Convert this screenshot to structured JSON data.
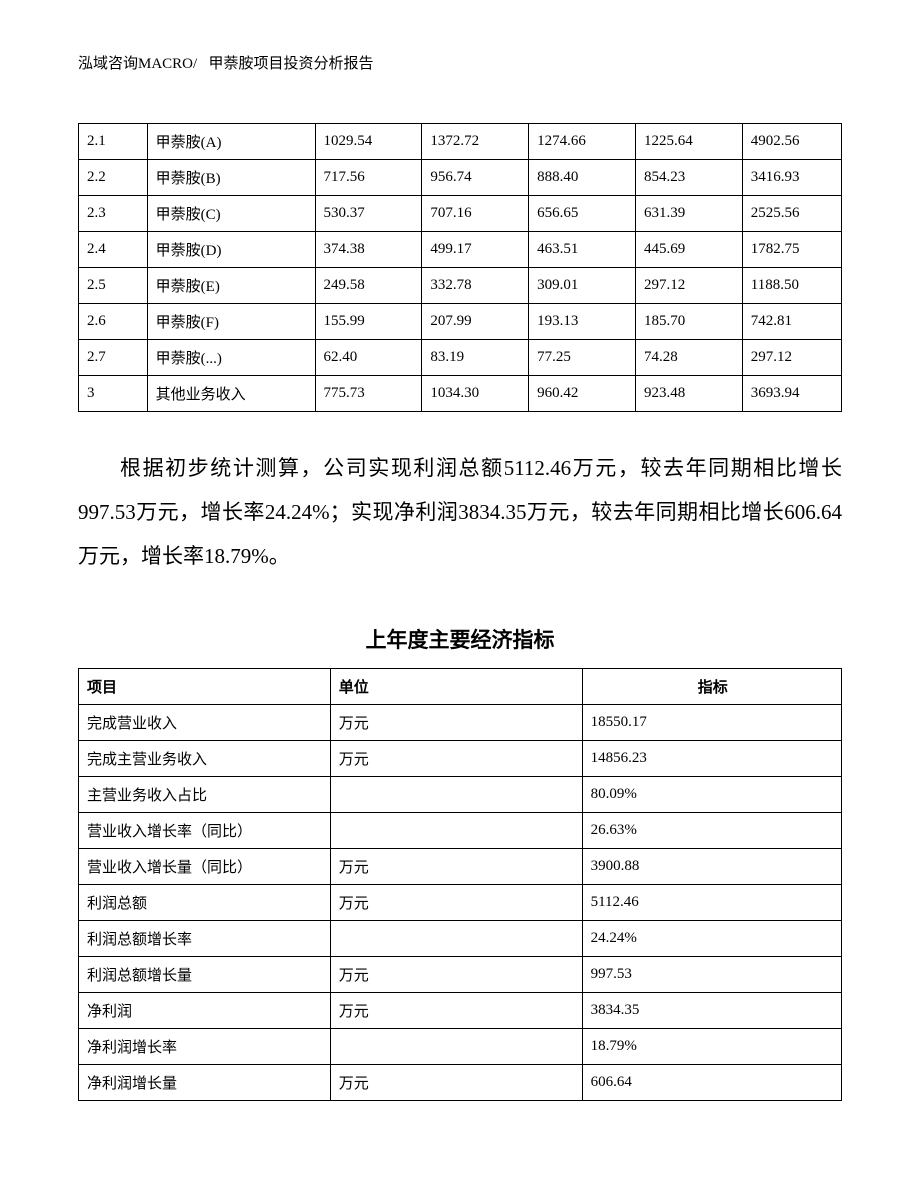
{
  "header": {
    "left": "泓域咨询MACRO/",
    "right": "甲萘胺项目投资分析报告"
  },
  "table1": {
    "type": "table",
    "border_color": "#000000",
    "background_color": "#ffffff",
    "font_size_pt": 11,
    "col_widths_pct": [
      9,
      22,
      14,
      14,
      14,
      14,
      13
    ],
    "rows": [
      [
        "2.1",
        "甲萘胺(A)",
        "1029.54",
        "1372.72",
        "1274.66",
        "1225.64",
        "4902.56"
      ],
      [
        "2.2",
        "甲萘胺(B)",
        "717.56",
        "956.74",
        "888.40",
        "854.23",
        "3416.93"
      ],
      [
        "2.3",
        "甲萘胺(C)",
        "530.37",
        "707.16",
        "656.65",
        "631.39",
        "2525.56"
      ],
      [
        "2.4",
        "甲萘胺(D)",
        "374.38",
        "499.17",
        "463.51",
        "445.69",
        "1782.75"
      ],
      [
        "2.5",
        "甲萘胺(E)",
        "249.58",
        "332.78",
        "309.01",
        "297.12",
        "1188.50"
      ],
      [
        "2.6",
        "甲萘胺(F)",
        "155.99",
        "207.99",
        "193.13",
        "185.70",
        "742.81"
      ],
      [
        "2.7",
        "甲萘胺(...)",
        "62.40",
        "83.19",
        "77.25",
        "74.28",
        "297.12"
      ],
      [
        "3",
        "其他业务收入",
        "775.73",
        "1034.30",
        "960.42",
        "923.48",
        "3693.94"
      ]
    ]
  },
  "paragraph": "根据初步统计测算，公司实现利润总额5112.46万元，较去年同期相比增长997.53万元，增长率24.24%；实现净利润3834.35万元，较去年同期相比增长606.64万元，增长率18.79%。",
  "subtitle": "上年度主要经济指标",
  "table2": {
    "type": "table",
    "border_color": "#000000",
    "background_color": "#ffffff",
    "font_size_pt": 11,
    "col_widths_pct": [
      33,
      33,
      34
    ],
    "columns": [
      "项目",
      "单位",
      "指标"
    ],
    "header_align": [
      "left",
      "left",
      "center"
    ],
    "rows": [
      [
        "完成营业收入",
        "万元",
        "18550.17"
      ],
      [
        "完成主营业务收入",
        "万元",
        "14856.23"
      ],
      [
        "主营业务收入占比",
        "",
        "80.09%"
      ],
      [
        "营业收入增长率（同比）",
        "",
        "26.63%"
      ],
      [
        "营业收入增长量（同比）",
        "万元",
        "3900.88"
      ],
      [
        "利润总额",
        "万元",
        "5112.46"
      ],
      [
        "利润总额增长率",
        "",
        "24.24%"
      ],
      [
        "利润总额增长量",
        "万元",
        "997.53"
      ],
      [
        "净利润",
        "万元",
        "3834.35"
      ],
      [
        "净利润增长率",
        "",
        "18.79%"
      ],
      [
        "净利润增长量",
        "万元",
        "606.64"
      ]
    ]
  }
}
